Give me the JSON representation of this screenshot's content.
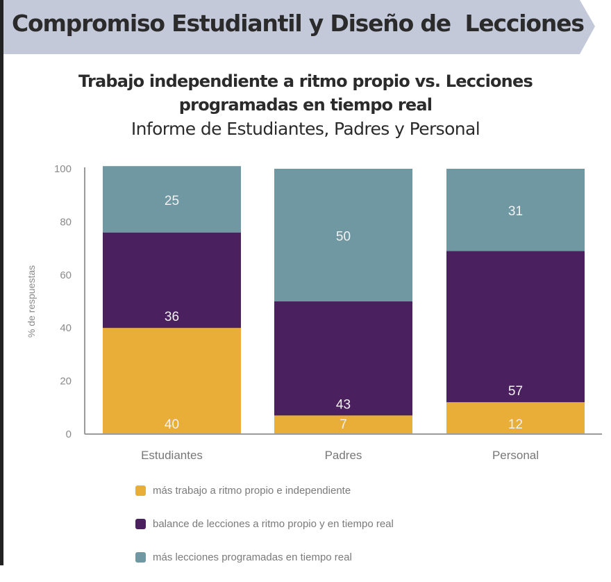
{
  "header": {
    "title": "Compromiso Estudiantil y Diseño de  Lecciones",
    "banner_color": "#c4c9da"
  },
  "chart_data": {
    "type": "bar",
    "stacked": true,
    "title": "Trabajo independiente a ritmo propio vs. Lecciones",
    "title_line2": "programadas en tiempo real",
    "subtitle": "Informe de Estudiantes, Padres y Personal",
    "xlabel": "",
    "ylabel": "% de respuestas",
    "ylim": [
      0,
      100
    ],
    "yticks": [
      0,
      20,
      40,
      60,
      80,
      100
    ],
    "grid": false,
    "legend_position": "bottom",
    "categories": [
      "Estudiantes",
      "Padres",
      "Personal"
    ],
    "series": [
      {
        "name": "más trabajo a ritmo propio e independiente",
        "color": "#e8ae38",
        "values": [
          40,
          7,
          12
        ]
      },
      {
        "name": "balance de lecciones a ritmo propio y en tiempo real",
        "color": "#4a215e",
        "values": [
          36,
          43,
          57
        ]
      },
      {
        "name": "más lecciones programadas en tiempo real",
        "color": "#6f98a3",
        "values": [
          25,
          50,
          31
        ]
      }
    ]
  }
}
